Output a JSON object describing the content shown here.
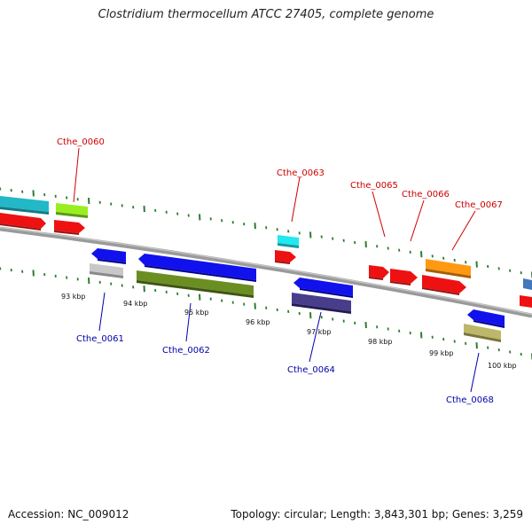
{
  "title": "Clostridium thermocellum ATCC 27405, complete genome",
  "accession_text": "Accession: NC_009012",
  "summary_text": "Topology: circular; Length: 3,843,301 bp; Genes: 3,259",
  "colors": {
    "forward_label": "#cc0000",
    "reverse_label": "#0000aa",
    "tick": "#2e7d2e",
    "backbone": "#8a8a8a"
  },
  "scale_labels": [
    "93 kbp",
    "94 kbp",
    "95 kbp",
    "96 kbp",
    "97 kbp",
    "98 kbp",
    "99 kbp",
    "100 kbp"
  ],
  "gene_labels": {
    "Cthe_0060": "Cthe_0060",
    "Cthe_0061": "Cthe_0061",
    "Cthe_0062": "Cthe_0062",
    "Cthe_0063": "Cthe_0063",
    "Cthe_0064": "Cthe_0064",
    "Cthe_0065": "Cthe_0065",
    "Cthe_0066": "Cthe_0066",
    "Cthe_0067": "Cthe_0067",
    "Cthe_0068": "Cthe_0068"
  }
}
